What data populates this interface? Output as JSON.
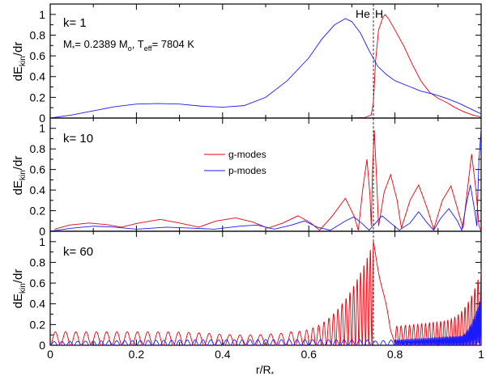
{
  "chart_data": {
    "type": "line",
    "xlabel": "r/R",
    "xlabel_sub": "*",
    "xlim": [
      0,
      1
    ],
    "xticks": [
      "0",
      "0.2",
      "0.4",
      "0.6",
      "0.8",
      "1"
    ],
    "x_values": [
      0,
      0.2,
      0.4,
      0.6,
      0.8,
      1
    ],
    "ylim": [
      0,
      1.1
    ],
    "yticks": [
      "0",
      "0.2",
      "0.4",
      "0.6",
      "0.8",
      "1"
    ],
    "y_values": [
      0,
      0.2,
      0.4,
      0.6,
      0.8,
      1
    ],
    "ylabel": {
      "main": "dE",
      "sub": "kin",
      "tail": "/dr"
    },
    "colors": {
      "g": "#e8000b",
      "p": "#1a1aff",
      "axis": "#000000"
    },
    "transition": {
      "x": 0.75,
      "label_left": "He",
      "label_right": "H"
    },
    "star": {
      "mass_label": "M",
      "mass_sub": "*",
      "mass_value": "= 0.2389 M",
      "mass_unit_sub": "o",
      "teff_sep": ", T",
      "teff_sub": "eff",
      "teff_value": "= 7804 K"
    },
    "legend": {
      "g_label": "g-modes",
      "p_label": "p-modes"
    },
    "panels": [
      {
        "k_label": "k= 1",
        "series": [
          {
            "name": "g-modes",
            "color": "g",
            "points": [
              [
                0,
                0
              ],
              [
                0.7,
                0
              ],
              [
                0.73,
                0.005
              ],
              [
                0.745,
                0.03
              ],
              [
                0.75,
                0.15
              ],
              [
                0.755,
                0.55
              ],
              [
                0.762,
                0.85
              ],
              [
                0.772,
                0.97
              ],
              [
                0.777,
                1.0
              ],
              [
                0.785,
                0.96
              ],
              [
                0.8,
                0.85
              ],
              [
                0.82,
                0.7
              ],
              [
                0.84,
                0.52
              ],
              [
                0.86,
                0.36
              ],
              [
                0.88,
                0.25
              ],
              [
                0.9,
                0.19
              ],
              [
                0.92,
                0.15
              ],
              [
                0.94,
                0.1
              ],
              [
                0.96,
                0.06
              ],
              [
                0.98,
                0.03
              ],
              [
                1,
                0.01
              ]
            ]
          },
          {
            "name": "p-modes",
            "color": "p",
            "points": [
              [
                0,
                0
              ],
              [
                0.05,
                0.03
              ],
              [
                0.1,
                0.07
              ],
              [
                0.15,
                0.11
              ],
              [
                0.2,
                0.135
              ],
              [
                0.25,
                0.14
              ],
              [
                0.3,
                0.135
              ],
              [
                0.35,
                0.115
              ],
              [
                0.4,
                0.105
              ],
              [
                0.45,
                0.12
              ],
              [
                0.5,
                0.2
              ],
              [
                0.55,
                0.36
              ],
              [
                0.6,
                0.58
              ],
              [
                0.63,
                0.76
              ],
              [
                0.66,
                0.9
              ],
              [
                0.685,
                0.96
              ],
              [
                0.7,
                0.93
              ],
              [
                0.72,
                0.82
              ],
              [
                0.74,
                0.65
              ],
              [
                0.76,
                0.5
              ],
              [
                0.78,
                0.42
              ],
              [
                0.8,
                0.36
              ],
              [
                0.83,
                0.31
              ],
              [
                0.86,
                0.26
              ],
              [
                0.89,
                0.23
              ],
              [
                0.92,
                0.19
              ],
              [
                0.95,
                0.14
              ],
              [
                0.97,
                0.1
              ],
              [
                0.99,
                0.06
              ],
              [
                1,
                0.04
              ]
            ]
          }
        ]
      },
      {
        "k_label": "k= 10",
        "series": [
          {
            "name": "g-modes",
            "color": "g",
            "points": [
              [
                0.01,
                0.02
              ],
              [
                0.045,
                0.06
              ],
              [
                0.09,
                0.08
              ],
              [
                0.13,
                0.065
              ],
              [
                0.165,
                0.04
              ],
              [
                0.2,
                0.075
              ],
              [
                0.255,
                0.115
              ],
              [
                0.3,
                0.08
              ],
              [
                0.345,
                0.04
              ],
              [
                0.385,
                0.1
              ],
              [
                0.43,
                0.13
              ],
              [
                0.47,
                0.09
              ],
              [
                0.505,
                0.03
              ],
              [
                0.54,
                0.08
              ],
              [
                0.575,
                0.15
              ],
              [
                0.605,
                0.08
              ],
              [
                0.625,
                0.01
              ],
              [
                0.655,
                0.15
              ],
              [
                0.685,
                0.32
              ],
              [
                0.705,
                0.15
              ],
              [
                0.715,
                0.01
              ],
              [
                0.725,
                0.4
              ],
              [
                0.735,
                0.7
              ],
              [
                0.742,
                0.35
              ],
              [
                0.745,
                0.05
              ],
              [
                0.748,
                0.6
              ],
              [
                0.752,
                0.98
              ],
              [
                0.757,
                0.55
              ],
              [
                0.762,
                0.05
              ],
              [
                0.775,
                0.38
              ],
              [
                0.79,
                0.55
              ],
              [
                0.805,
                0.3
              ],
              [
                0.815,
                0.03
              ],
              [
                0.835,
                0.3
              ],
              [
                0.855,
                0.45
              ],
              [
                0.875,
                0.22
              ],
              [
                0.89,
                0.02
              ],
              [
                0.91,
                0.3
              ],
              [
                0.93,
                0.44
              ],
              [
                0.945,
                0.22
              ],
              [
                0.958,
                0.03
              ],
              [
                0.968,
                0.4
              ],
              [
                0.978,
                0.75
              ],
              [
                0.988,
                0.4
              ],
              [
                0.995,
                0.05
              ],
              [
                1,
                0.0
              ]
            ]
          },
          {
            "name": "p-modes",
            "color": "p",
            "points": [
              [
                0,
                0
              ],
              [
                0.05,
                0.03
              ],
              [
                0.1,
                0.05
              ],
              [
                0.15,
                0.04
              ],
              [
                0.2,
                0.02
              ],
              [
                0.27,
                0.04
              ],
              [
                0.33,
                0.03
              ],
              [
                0.38,
                0.02
              ],
              [
                0.44,
                0.05
              ],
              [
                0.48,
                0.06
              ],
              [
                0.52,
                0.02
              ],
              [
                0.56,
                0.06
              ],
              [
                0.59,
                0.1
              ],
              [
                0.62,
                0.04
              ],
              [
                0.65,
                0.01
              ],
              [
                0.685,
                0.1
              ],
              [
                0.705,
                0.14
              ],
              [
                0.725,
                0.07
              ],
              [
                0.74,
                0.01
              ],
              [
                0.755,
                0.08
              ],
              [
                0.77,
                0.15
              ],
              [
                0.79,
                0.08
              ],
              [
                0.81,
                0.01
              ],
              [
                0.835,
                0.08
              ],
              [
                0.855,
                0.19
              ],
              [
                0.875,
                0.08
              ],
              [
                0.89,
                0.01
              ],
              [
                0.905,
                0.12
              ],
              [
                0.925,
                0.22
              ],
              [
                0.945,
                0.1
              ],
              [
                0.955,
                0.01
              ],
              [
                0.965,
                0.25
              ],
              [
                0.975,
                0.45
              ],
              [
                0.985,
                0.2
              ],
              [
                0.99,
                0.05
              ],
              [
                0.995,
                0.7
              ],
              [
                1,
                1.0
              ]
            ]
          }
        ]
      },
      {
        "k_label": "k= 60",
        "series": [
          {
            "name": "g-modes",
            "color": "g",
            "generated": "oscillation_g"
          },
          {
            "name": "p-modes",
            "color": "p",
            "generated": "oscillation_p"
          }
        ]
      }
    ]
  }
}
